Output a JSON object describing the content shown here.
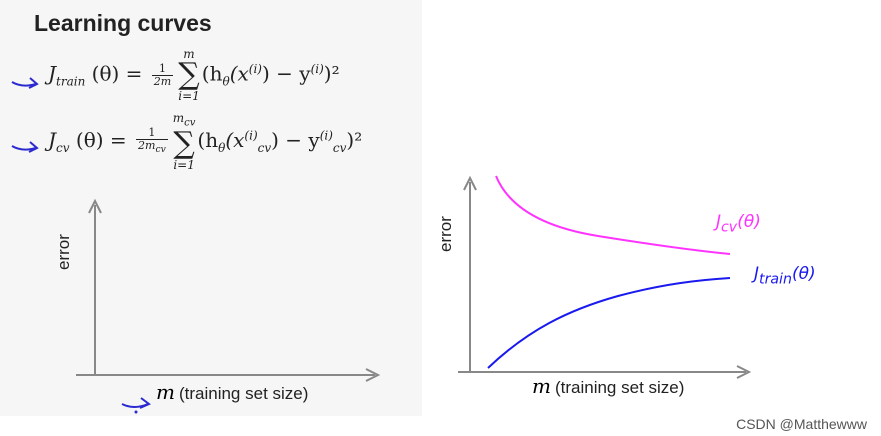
{
  "title": "Learning curves",
  "equations": {
    "train": {
      "lhs": "J",
      "lhs_sub": "train",
      "lhs_arg": "(θ) =",
      "frac_num": "1",
      "frac_den": "2m",
      "sum_top": "m",
      "sum_bot": "i=1",
      "body": "(h",
      "body_sub": "θ",
      "body_rest": "(x",
      "body_sup": "(i)",
      "body_tail": ") − y",
      "body_sup2": "(i)",
      "body_end": ")²"
    },
    "cv": {
      "lhs": "J",
      "lhs_sub": "cv",
      "lhs_arg": "(θ) =",
      "frac_num": "1",
      "frac_den": "2m",
      "frac_den_sub": "cv",
      "sum_top": "m",
      "sum_top_sub": "cv",
      "sum_bot": "i=1",
      "body": "(h",
      "body_sub": "θ",
      "body_rest": "(x",
      "body_sup": "(i)",
      "body_sub2": "cv",
      "body_tail": ") − y",
      "body_sup2": "(i)",
      "body_sub3": "cv",
      "body_end": ")²"
    }
  },
  "left_plot": {
    "ylabel": "error",
    "xlabel_sym": "m",
    "xlabel_text": "(training set size)"
  },
  "right_plot": {
    "ylabel": "error",
    "xlabel_sym": "m",
    "xlabel_text": "(training set size)",
    "cv_label": "J",
    "cv_label_sub": "cv",
    "cv_label_arg": "(θ)",
    "train_label": "J",
    "train_label_sub": "train",
    "train_label_arg": "(θ)"
  },
  "colors": {
    "cv_curve": "#ff33ff",
    "train_curve": "#1a1aee",
    "arrow_annotation": "#2a2ad0",
    "axis": "#888888"
  },
  "watermark": "CSDN @Matthewww"
}
